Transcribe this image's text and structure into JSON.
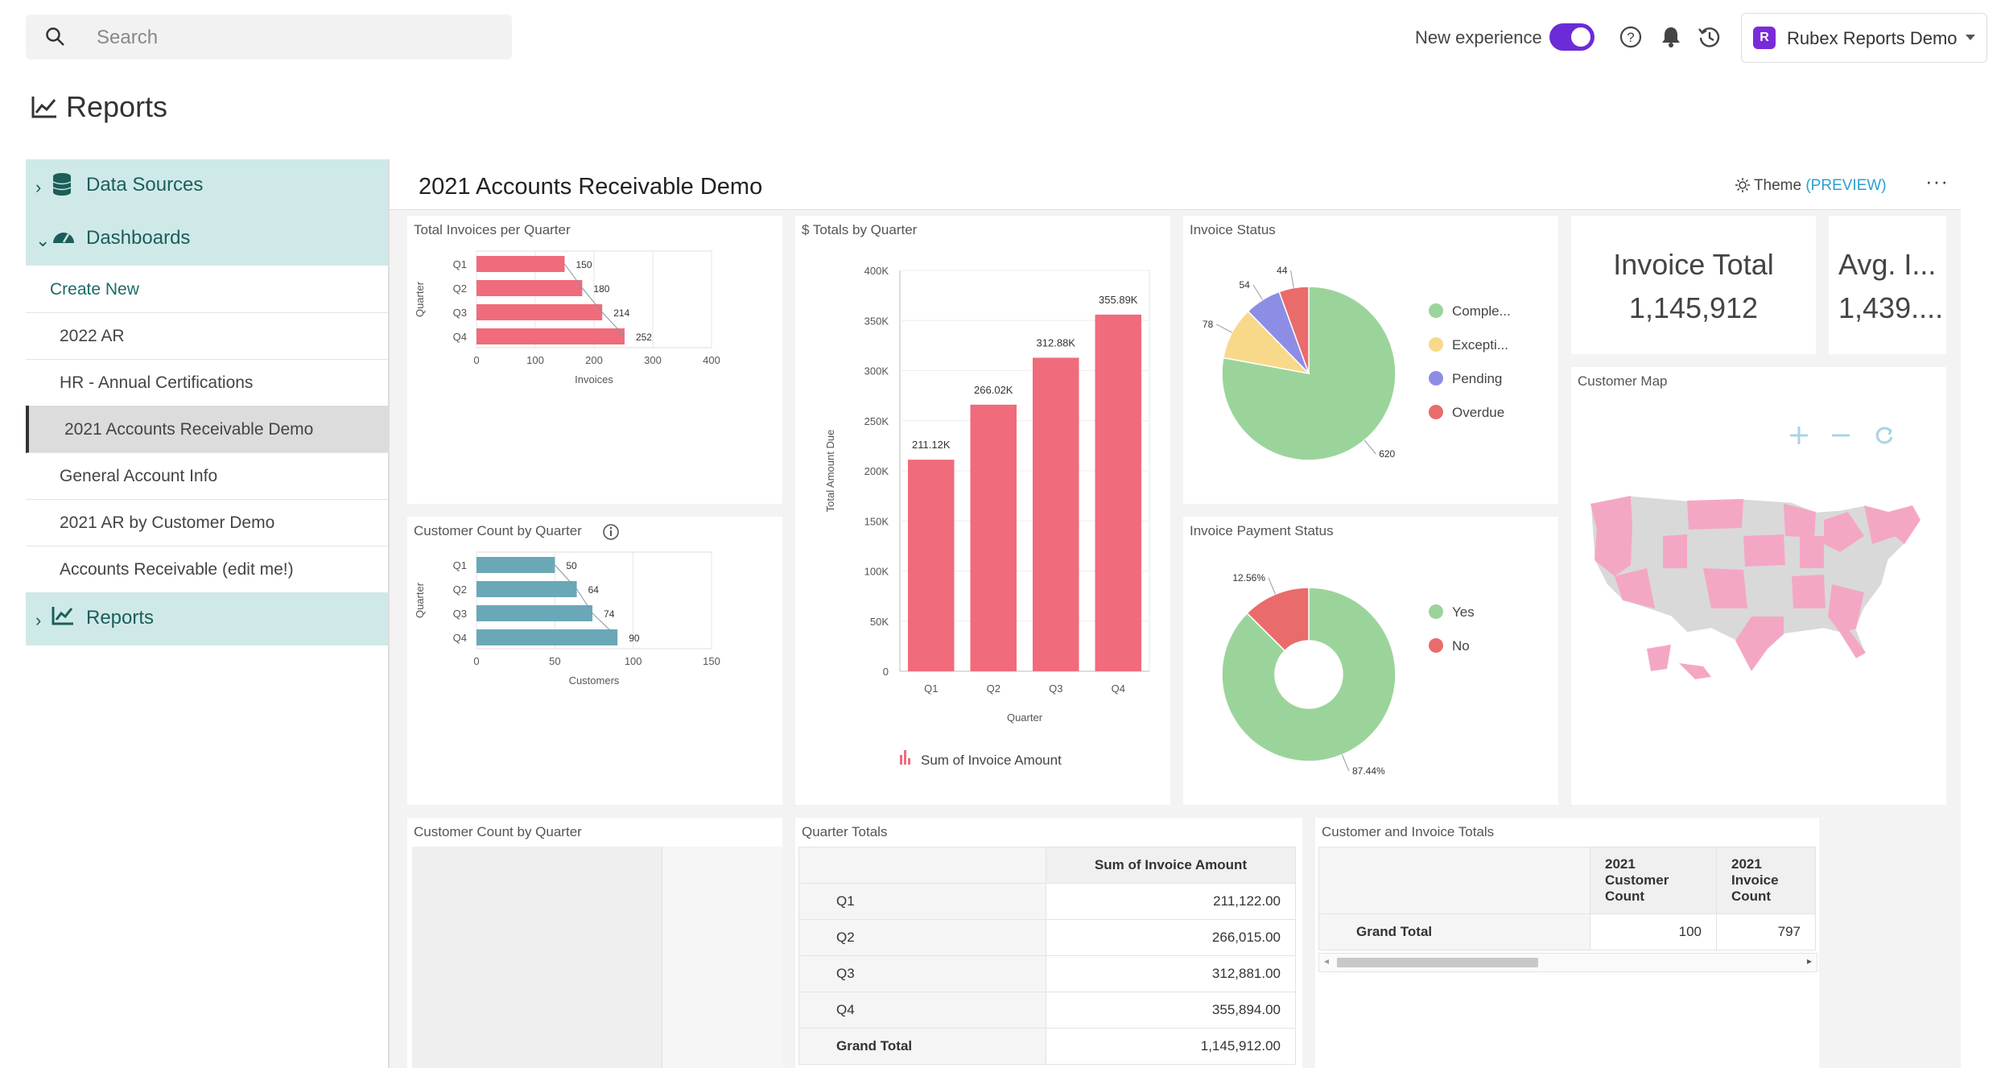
{
  "search": {
    "placeholder": "Search"
  },
  "topbar": {
    "new_experience": "New experience",
    "account_badge": "R",
    "account_name": "Rubex Reports Demo"
  },
  "page": {
    "title": "Reports"
  },
  "sidebar": {
    "sections": [
      {
        "label": "Data Sources",
        "expanded": false
      },
      {
        "label": "Dashboards",
        "expanded": true
      },
      {
        "label": "Reports",
        "expanded": false
      }
    ],
    "dashboard_items": [
      {
        "label": "Create New"
      },
      {
        "label": "2022 AR"
      },
      {
        "label": "HR - Annual Certifications"
      },
      {
        "label": "2021 Accounts Receivable Demo",
        "selected": true
      },
      {
        "label": "General Account Info"
      },
      {
        "label": "2021 AR by Customer Demo"
      },
      {
        "label": "Accounts Receivable (edit me!)"
      }
    ]
  },
  "dashboard": {
    "title": "2021 Accounts Receivable Demo",
    "theme_label": "Theme",
    "theme_tag": "(PREVIEW)",
    "more": "···"
  },
  "cards": {
    "total_invoices": "Total Invoices per Quarter",
    "totals_by_quarter": "$ Totals by Quarter",
    "invoice_status": "Invoice Status",
    "invoice_total_title": "Invoice Total",
    "invoice_total_value": "1,145,912",
    "avg_title": "Avg. I...",
    "avg_value": "1,439....",
    "customer_count": "Customer Count by Quarter",
    "payment_status": "Invoice Payment Status",
    "customer_map": "Customer Map",
    "customer_count_2": "Customer Count by Quarter",
    "quarter_totals": "Quarter Totals",
    "customer_invoice_totals": "Customer and Invoice Totals"
  },
  "chart_data": [
    {
      "type": "bar",
      "orientation": "horizontal",
      "title": "Total Invoices per Quarter",
      "categories": [
        "Q1",
        "Q2",
        "Q3",
        "Q4"
      ],
      "values": [
        150,
        180,
        214,
        252
      ],
      "xlabel": "Invoices",
      "ylabel": "Quarter",
      "xlim": [
        0,
        400
      ],
      "xticks": [
        "0",
        "100",
        "200",
        "300",
        "400"
      ],
      "color": "#f06b7b"
    },
    {
      "type": "bar",
      "title": "$ Totals by Quarter",
      "categories": [
        "Q1",
        "Q2",
        "Q3",
        "Q4"
      ],
      "values": [
        211122,
        266015,
        312881,
        355894
      ],
      "data_labels": [
        "211.12K",
        "266.02K",
        "312.88K",
        "355.89K"
      ],
      "xlabel": "Quarter",
      "ylabel": "Total Amount Due",
      "ylim": [
        0,
        400000
      ],
      "yticks": [
        "0",
        "50K",
        "100K",
        "150K",
        "200K",
        "250K",
        "300K",
        "350K",
        "400K"
      ],
      "legend": "Sum of Invoice Amount",
      "color": "#f06b7b"
    },
    {
      "type": "pie",
      "title": "Invoice Status",
      "labels": [
        "Comple...",
        "Excepti...",
        "Pending",
        "Overdue"
      ],
      "values": [
        620,
        78,
        54,
        44
      ],
      "colors": [
        "#9bd49a",
        "#f8d98a",
        "#8d8de6",
        "#ea6b6b"
      ]
    },
    {
      "type": "bar",
      "orientation": "horizontal",
      "title": "Customer Count by Quarter",
      "categories": [
        "Q1",
        "Q2",
        "Q3",
        "Q4"
      ],
      "values": [
        50,
        64,
        74,
        90
      ],
      "xlabel": "Customers",
      "ylabel": "Quarter",
      "xlim": [
        0,
        150
      ],
      "xticks": [
        "0",
        "50",
        "100",
        "150"
      ],
      "color": "#6aa8b8"
    },
    {
      "type": "pie",
      "subtype": "donut",
      "title": "Invoice Payment Status",
      "labels": [
        "Yes",
        "No"
      ],
      "values": [
        87.44,
        12.56
      ],
      "data_labels": [
        "87.44%",
        "12.56%"
      ],
      "colors": [
        "#9bd49a",
        "#ea6b6b"
      ]
    },
    {
      "type": "table",
      "title": "Quarter Totals",
      "columns": [
        "",
        "Sum of Invoice Amount"
      ],
      "rows": [
        [
          "Q1",
          "211,122.00"
        ],
        [
          "Q2",
          "266,015.00"
        ],
        [
          "Q3",
          "312,881.00"
        ],
        [
          "Q4",
          "355,894.00"
        ],
        [
          "Grand Total",
          "1,145,912.00"
        ]
      ]
    },
    {
      "type": "table",
      "title": "Customer and Invoice Totals",
      "columns": [
        "",
        "2021 Customer Count",
        "2021 Invoice Count"
      ],
      "rows": [
        [
          "Grand Total",
          "100",
          "797"
        ]
      ]
    }
  ]
}
